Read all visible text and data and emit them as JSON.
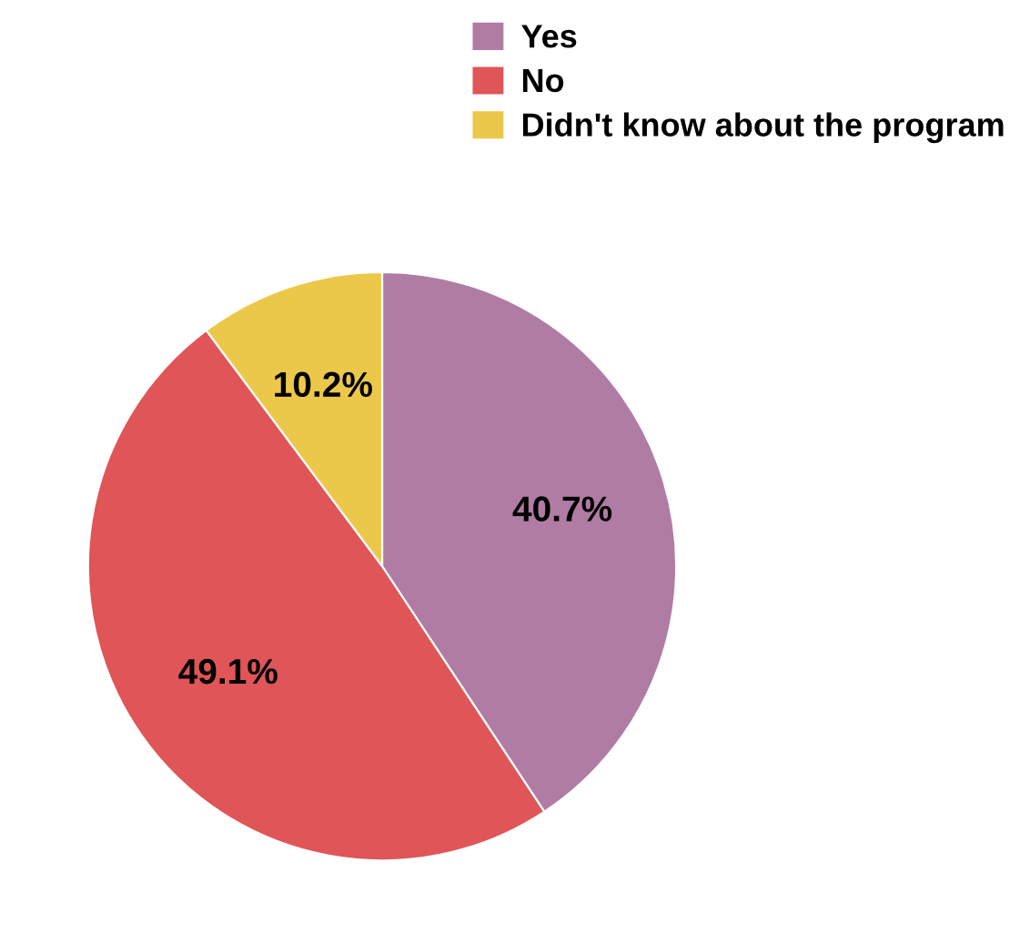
{
  "chart_data": {
    "type": "pie",
    "categories": [
      "Yes",
      "No",
      "Didn't know about the program"
    ],
    "values": [
      40.7,
      49.1,
      10.2
    ],
    "colors": [
      "#b07ca4",
      "#e05557",
      "#ecc84a"
    ],
    "value_labels": [
      "40.7%",
      "49.1%",
      "10.2%"
    ],
    "legend": "top right"
  }
}
